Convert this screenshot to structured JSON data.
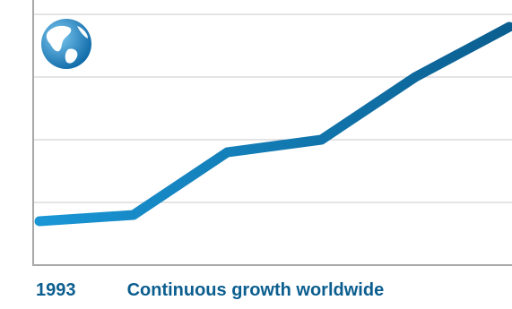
{
  "caption": {
    "year": "1993",
    "text": "Continuous growth worldwide"
  },
  "icon": "globe-icon",
  "colors": {
    "line_start": "#1a96d6",
    "line_end": "#0b5e8f",
    "caption": "#0b5e8f",
    "grid": "#c8c8c8",
    "axis": "#a8a8a8"
  },
  "chart_data": {
    "type": "line",
    "title": "",
    "xlabel": "",
    "ylabel": "",
    "x": [
      1,
      2,
      3,
      4,
      5,
      6
    ],
    "series": [
      {
        "values": [
          0.7,
          0.8,
          1.8,
          2.0,
          3.0,
          3.8
        ]
      }
    ],
    "xlim": [
      1,
      6
    ],
    "ylim": [
      0,
      4
    ],
    "grid": true,
    "tick_labels_shown": false
  }
}
